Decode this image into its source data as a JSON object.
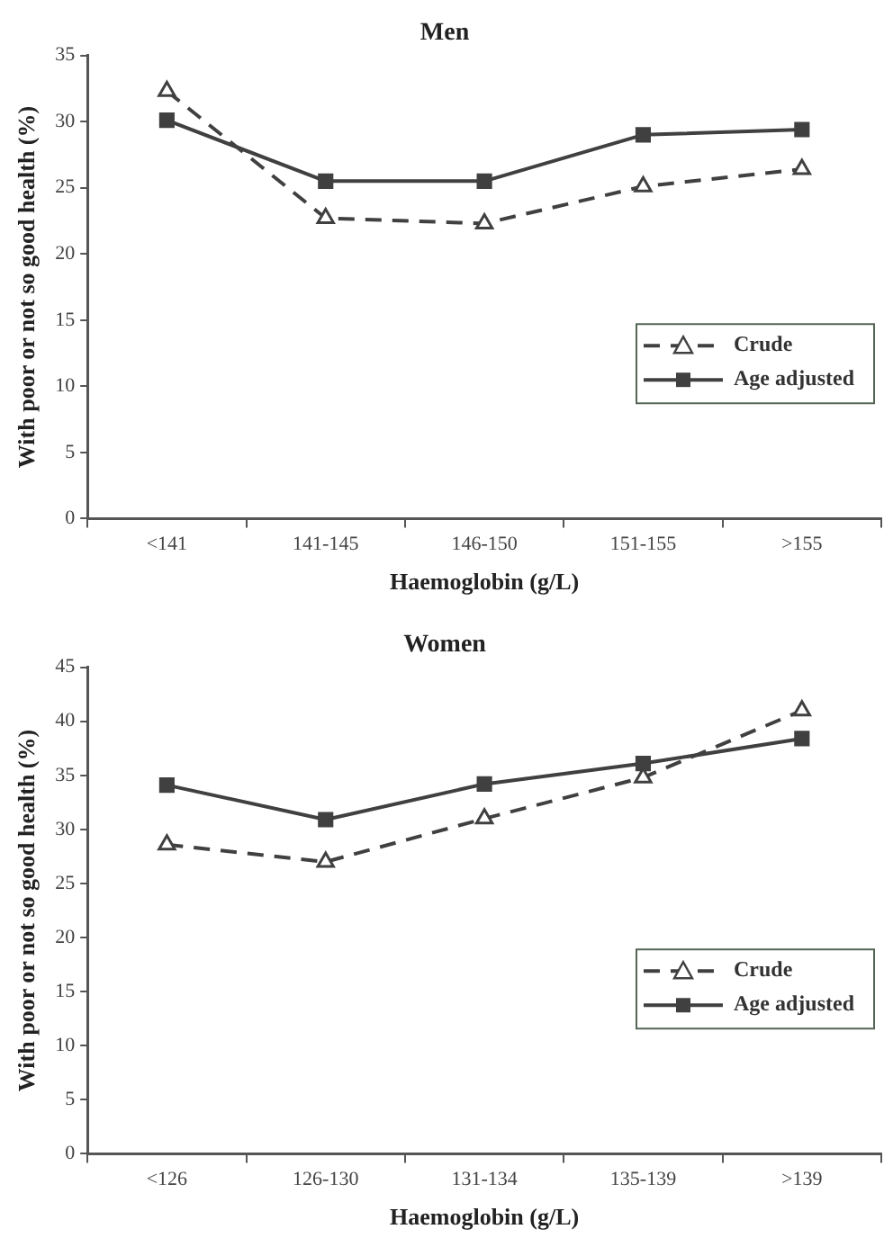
{
  "chart_data": [
    {
      "type": "line",
      "title": "Men",
      "xlabel": "Haemoglobin (g/L)",
      "ylabel": "With poor or not so good health (%)",
      "categories": [
        "<141",
        "141-145",
        "146-150",
        "151-155",
        ">155"
      ],
      "series": [
        {
          "name": "Crude",
          "color": "#404040",
          "marker": "triangle",
          "line_style": "dashed",
          "values": [
            32.3,
            22.7,
            22.3,
            25.1,
            26.4
          ]
        },
        {
          "name": "Age adjusted",
          "color": "#404040",
          "marker": "square",
          "line_style": "solid",
          "values": [
            30.1,
            25.5,
            25.5,
            29.0,
            29.4
          ]
        }
      ],
      "ylim": [
        0,
        35
      ],
      "yticks": [
        0,
        5,
        10,
        15,
        20,
        25,
        30,
        35
      ],
      "grid": false,
      "legend": "right"
    },
    {
      "type": "line",
      "title": "Women",
      "xlabel": "Haemoglobin (g/L)",
      "ylabel": "With poor or not so good health (%)",
      "categories": [
        "<126",
        "126-130",
        "131-134",
        "135-139",
        ">139"
      ],
      "series": [
        {
          "name": "Crude",
          "color": "#404040",
          "marker": "triangle",
          "line_style": "dashed",
          "values": [
            28.6,
            27.0,
            31.0,
            34.8,
            41.0
          ]
        },
        {
          "name": "Age adjusted",
          "color": "#404040",
          "marker": "square",
          "line_style": "solid",
          "values": [
            34.1,
            30.9,
            34.2,
            36.1,
            38.4
          ]
        }
      ],
      "ylim": [
        0,
        45
      ],
      "yticks": [
        0,
        5,
        10,
        15,
        20,
        25,
        30,
        35,
        40,
        45
      ],
      "grid": false,
      "legend": "right"
    }
  ]
}
